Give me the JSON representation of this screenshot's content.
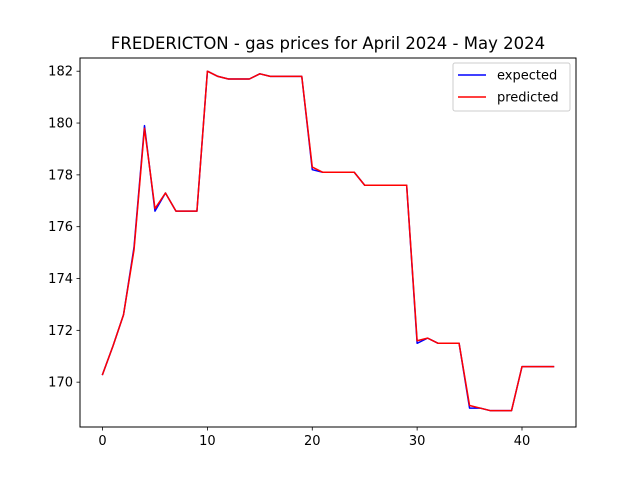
{
  "chart_data": {
    "type": "line",
    "title": "FREDERICTON - gas prices for April 2024 - May 2024",
    "xlabel": "",
    "ylabel": "",
    "xlim": [
      -2.15,
      45.15
    ],
    "ylim": [
      168.27,
      182.51
    ],
    "xticks": [
      0,
      10,
      20,
      30,
      40
    ],
    "yticks": [
      170,
      172,
      174,
      176,
      178,
      180,
      182
    ],
    "grid": false,
    "legend_position": "top-right",
    "x": [
      0,
      1,
      2,
      3,
      4,
      5,
      6,
      7,
      8,
      9,
      10,
      11,
      12,
      13,
      14,
      15,
      16,
      17,
      18,
      19,
      20,
      21,
      22,
      23,
      24,
      25,
      26,
      27,
      28,
      29,
      30,
      31,
      32,
      33,
      34,
      35,
      36,
      37,
      38,
      39,
      40,
      41,
      42,
      43
    ],
    "series": [
      {
        "name": "expected",
        "color": "#0000ff",
        "values": [
          170.3,
          171.4,
          172.6,
          175.2,
          179.9,
          176.6,
          177.3,
          176.6,
          176.6,
          176.6,
          182.0,
          181.8,
          181.7,
          181.7,
          181.7,
          181.9,
          181.8,
          181.8,
          181.8,
          181.8,
          178.2,
          178.1,
          178.1,
          178.1,
          178.1,
          177.6,
          177.6,
          177.6,
          177.6,
          177.6,
          171.5,
          171.7,
          171.5,
          171.5,
          171.5,
          169.0,
          169.0,
          168.9,
          168.9,
          168.9,
          170.6,
          170.6,
          170.6,
          170.6
        ]
      },
      {
        "name": "predicted",
        "color": "#ff0000",
        "values": [
          170.3,
          171.4,
          172.6,
          175.1,
          179.8,
          176.7,
          177.3,
          176.6,
          176.6,
          176.6,
          182.0,
          181.8,
          181.7,
          181.7,
          181.7,
          181.9,
          181.8,
          181.8,
          181.8,
          181.8,
          178.3,
          178.1,
          178.1,
          178.1,
          178.1,
          177.6,
          177.6,
          177.6,
          177.6,
          177.6,
          171.6,
          171.7,
          171.5,
          171.5,
          171.5,
          169.1,
          169.0,
          168.9,
          168.9,
          168.9,
          170.6,
          170.6,
          170.6,
          170.6
        ]
      }
    ]
  }
}
